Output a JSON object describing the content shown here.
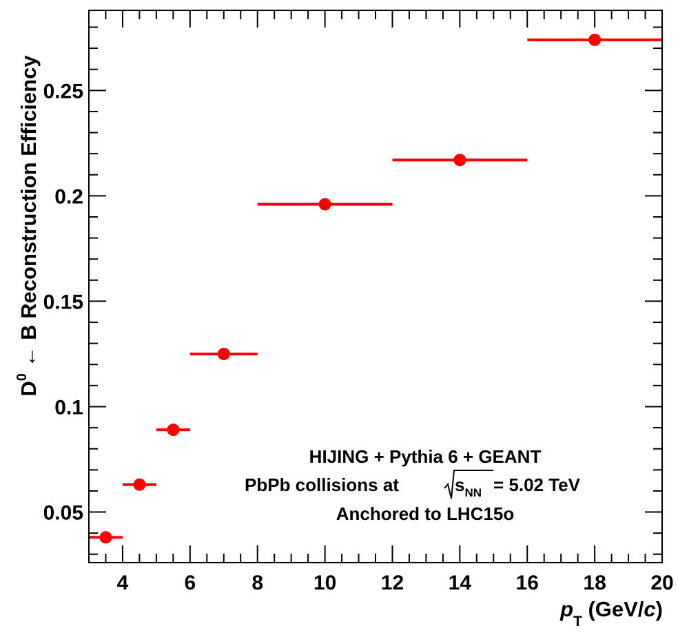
{
  "chart_data": {
    "type": "scatter",
    "title": "",
    "xlabel": {
      "var": "p",
      "sub": "T",
      "unit_open": " (GeV/",
      "unit_var": "c",
      "unit_close": ")"
    },
    "ylabel": {
      "d": "D",
      "sup": "0",
      "rest": " ← B Reconstruction Efficiency"
    },
    "xlim": [
      3,
      20
    ],
    "ylim": [
      0.026,
      0.288
    ],
    "x_ticks": [
      4,
      6,
      8,
      10,
      12,
      14,
      16,
      18,
      20
    ],
    "x_tick_labels": [
      "4",
      "6",
      "8",
      "10",
      "12",
      "14",
      "16",
      "18",
      "20"
    ],
    "y_ticks": [
      0.05,
      0.1,
      0.15,
      0.2,
      0.25
    ],
    "y_tick_labels": [
      "0.05",
      "0.1",
      "0.15",
      "0.2",
      "0.25"
    ],
    "grid": false,
    "series": [
      {
        "color": "#ff0000",
        "points": [
          {
            "x": 3.5,
            "x_low": 3,
            "x_high": 4,
            "y": 0.038
          },
          {
            "x": 4.5,
            "x_low": 4,
            "x_high": 5,
            "y": 0.063
          },
          {
            "x": 5.5,
            "x_low": 5,
            "x_high": 6,
            "y": 0.089
          },
          {
            "x": 7,
            "x_low": 6,
            "x_high": 8,
            "y": 0.125
          },
          {
            "x": 10,
            "x_low": 8,
            "x_high": 12,
            "y": 0.196
          },
          {
            "x": 14,
            "x_low": 12,
            "x_high": 16,
            "y": 0.217
          },
          {
            "x": 18,
            "x_low": 16,
            "x_high": 20,
            "y": 0.274
          }
        ]
      }
    ],
    "annotations": {
      "line1": "HIJING + Pythia 6 + GEANT",
      "line2_prefix": "PbPb collisions at ",
      "line2_sqrt_var": "s",
      "line2_sqrt_sub": "NN",
      "line2_suffix": " = 5.02 TeV",
      "line3": "Anchored to LHC15o"
    }
  }
}
